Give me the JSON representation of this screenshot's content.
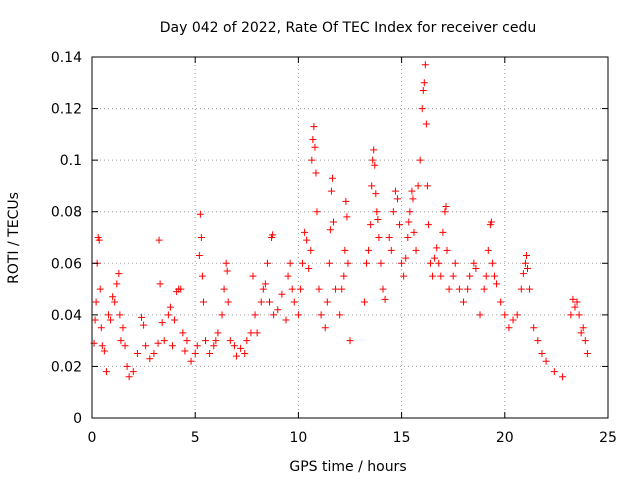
{
  "chart_data": {
    "type": "scatter",
    "title": "Day 042 of 2022, Rate Of TEC Index for receiver cedu",
    "xlabel": "GPS time / hours",
    "ylabel": "ROTI / TECUs",
    "xlim": [
      0,
      25
    ],
    "ylim": [
      0,
      0.14
    ],
    "x_ticks": [
      "0",
      "5",
      "10",
      "15",
      "20",
      "25"
    ],
    "y_ticks": [
      "0",
      "0.02",
      "0.04",
      "0.06",
      "0.08",
      "0.1",
      "0.12",
      "0.14"
    ],
    "grid": true,
    "legend": "none",
    "marker": "+",
    "series": [
      {
        "color": "#ff0000",
        "points": [
          [
            0.1,
            0.029
          ],
          [
            0.15,
            0.038
          ],
          [
            0.2,
            0.045
          ],
          [
            0.25,
            0.06
          ],
          [
            0.3,
            0.07
          ],
          [
            0.35,
            0.069
          ],
          [
            0.4,
            0.05
          ],
          [
            0.45,
            0.035
          ],
          [
            0.5,
            0.028
          ],
          [
            0.6,
            0.026
          ],
          [
            0.7,
            0.018
          ],
          [
            0.8,
            0.04
          ],
          [
            0.9,
            0.038
          ],
          [
            1.0,
            0.047
          ],
          [
            1.1,
            0.045
          ],
          [
            1.2,
            0.052
          ],
          [
            1.3,
            0.056
          ],
          [
            1.35,
            0.04
          ],
          [
            1.4,
            0.03
          ],
          [
            1.5,
            0.035
          ],
          [
            1.6,
            0.028
          ],
          [
            1.7,
            0.02
          ],
          [
            1.8,
            0.016
          ],
          [
            2.0,
            0.018
          ],
          [
            2.2,
            0.025
          ],
          [
            2.4,
            0.039
          ],
          [
            2.5,
            0.036
          ],
          [
            2.6,
            0.028
          ],
          [
            2.8,
            0.023
          ],
          [
            3.0,
            0.025
          ],
          [
            3.2,
            0.029
          ],
          [
            3.25,
            0.069
          ],
          [
            3.3,
            0.052
          ],
          [
            3.4,
            0.037
          ],
          [
            3.5,
            0.03
          ],
          [
            3.7,
            0.04
          ],
          [
            3.8,
            0.043
          ],
          [
            3.9,
            0.028
          ],
          [
            4.0,
            0.038
          ],
          [
            4.1,
            0.049
          ],
          [
            4.2,
            0.05
          ],
          [
            4.3,
            0.05
          ],
          [
            4.4,
            0.033
          ],
          [
            4.5,
            0.026
          ],
          [
            4.6,
            0.03
          ],
          [
            4.8,
            0.022
          ],
          [
            5.0,
            0.025
          ],
          [
            5.1,
            0.028
          ],
          [
            5.2,
            0.063
          ],
          [
            5.25,
            0.079
          ],
          [
            5.3,
            0.07
          ],
          [
            5.35,
            0.055
          ],
          [
            5.4,
            0.045
          ],
          [
            5.5,
            0.03
          ],
          [
            5.7,
            0.025
          ],
          [
            5.9,
            0.028
          ],
          [
            6.0,
            0.03
          ],
          [
            6.1,
            0.033
          ],
          [
            6.3,
            0.04
          ],
          [
            6.4,
            0.05
          ],
          [
            6.5,
            0.06
          ],
          [
            6.55,
            0.057
          ],
          [
            6.6,
            0.045
          ],
          [
            6.7,
            0.03
          ],
          [
            6.9,
            0.028
          ],
          [
            7.0,
            0.024
          ],
          [
            7.2,
            0.027
          ],
          [
            7.4,
            0.025
          ],
          [
            7.5,
            0.03
          ],
          [
            7.7,
            0.033
          ],
          [
            7.8,
            0.055
          ],
          [
            7.9,
            0.04
          ],
          [
            8.0,
            0.033
          ],
          [
            8.2,
            0.045
          ],
          [
            8.3,
            0.05
          ],
          [
            8.4,
            0.052
          ],
          [
            8.5,
            0.06
          ],
          [
            8.6,
            0.045
          ],
          [
            8.7,
            0.07
          ],
          [
            8.75,
            0.071
          ],
          [
            8.8,
            0.04
          ],
          [
            9.0,
            0.042
          ],
          [
            9.2,
            0.048
          ],
          [
            9.4,
            0.038
          ],
          [
            9.5,
            0.055
          ],
          [
            9.6,
            0.06
          ],
          [
            9.7,
            0.05
          ],
          [
            9.8,
            0.045
          ],
          [
            10.0,
            0.04
          ],
          [
            10.1,
            0.05
          ],
          [
            10.2,
            0.06
          ],
          [
            10.3,
            0.072
          ],
          [
            10.4,
            0.069
          ],
          [
            10.5,
            0.058
          ],
          [
            10.6,
            0.065
          ],
          [
            10.65,
            0.1
          ],
          [
            10.7,
            0.108
          ],
          [
            10.75,
            0.113
          ],
          [
            10.8,
            0.105
          ],
          [
            10.85,
            0.095
          ],
          [
            10.9,
            0.08
          ],
          [
            11.0,
            0.05
          ],
          [
            11.1,
            0.04
          ],
          [
            11.3,
            0.035
          ],
          [
            11.4,
            0.045
          ],
          [
            11.5,
            0.06
          ],
          [
            11.55,
            0.073
          ],
          [
            11.6,
            0.088
          ],
          [
            11.65,
            0.093
          ],
          [
            11.7,
            0.076
          ],
          [
            11.8,
            0.05
          ],
          [
            12.0,
            0.04
          ],
          [
            12.1,
            0.05
          ],
          [
            12.2,
            0.055
          ],
          [
            12.25,
            0.065
          ],
          [
            12.3,
            0.084
          ],
          [
            12.35,
            0.078
          ],
          [
            12.4,
            0.06
          ],
          [
            12.5,
            0.03
          ],
          [
            13.2,
            0.045
          ],
          [
            13.3,
            0.06
          ],
          [
            13.4,
            0.065
          ],
          [
            13.5,
            0.075
          ],
          [
            13.55,
            0.09
          ],
          [
            13.6,
            0.1
          ],
          [
            13.65,
            0.104
          ],
          [
            13.7,
            0.098
          ],
          [
            13.75,
            0.087
          ],
          [
            13.8,
            0.08
          ],
          [
            13.85,
            0.077
          ],
          [
            13.9,
            0.07
          ],
          [
            14.0,
            0.06
          ],
          [
            14.1,
            0.05
          ],
          [
            14.2,
            0.046
          ],
          [
            14.4,
            0.07
          ],
          [
            14.5,
            0.065
          ],
          [
            14.6,
            0.08
          ],
          [
            14.7,
            0.088
          ],
          [
            14.8,
            0.085
          ],
          [
            14.9,
            0.075
          ],
          [
            15.0,
            0.06
          ],
          [
            15.1,
            0.055
          ],
          [
            15.2,
            0.062
          ],
          [
            15.3,
            0.07
          ],
          [
            15.35,
            0.076
          ],
          [
            15.4,
            0.08
          ],
          [
            15.5,
            0.088
          ],
          [
            15.55,
            0.085
          ],
          [
            15.6,
            0.072
          ],
          [
            15.7,
            0.065
          ],
          [
            15.8,
            0.09
          ],
          [
            15.9,
            0.1
          ],
          [
            16.0,
            0.12
          ],
          [
            16.05,
            0.127
          ],
          [
            16.1,
            0.13
          ],
          [
            16.15,
            0.137
          ],
          [
            16.2,
            0.114
          ],
          [
            16.25,
            0.09
          ],
          [
            16.3,
            0.075
          ],
          [
            16.4,
            0.06
          ],
          [
            16.5,
            0.055
          ],
          [
            16.6,
            0.062
          ],
          [
            16.7,
            0.066
          ],
          [
            16.8,
            0.06
          ],
          [
            16.9,
            0.055
          ],
          [
            17.0,
            0.072
          ],
          [
            17.1,
            0.08
          ],
          [
            17.15,
            0.082
          ],
          [
            17.2,
            0.065
          ],
          [
            17.3,
            0.05
          ],
          [
            17.5,
            0.055
          ],
          [
            17.6,
            0.06
          ],
          [
            17.8,
            0.05
          ],
          [
            18.0,
            0.045
          ],
          [
            18.2,
            0.05
          ],
          [
            18.3,
            0.055
          ],
          [
            18.5,
            0.06
          ],
          [
            18.6,
            0.058
          ],
          [
            18.8,
            0.04
          ],
          [
            19.0,
            0.05
          ],
          [
            19.1,
            0.055
          ],
          [
            19.2,
            0.065
          ],
          [
            19.3,
            0.075
          ],
          [
            19.35,
            0.076
          ],
          [
            19.4,
            0.06
          ],
          [
            19.5,
            0.055
          ],
          [
            19.6,
            0.052
          ],
          [
            19.8,
            0.045
          ],
          [
            20.0,
            0.04
          ],
          [
            20.2,
            0.035
          ],
          [
            20.4,
            0.038
          ],
          [
            20.6,
            0.04
          ],
          [
            20.8,
            0.05
          ],
          [
            20.9,
            0.056
          ],
          [
            21.0,
            0.06
          ],
          [
            21.05,
            0.063
          ],
          [
            21.1,
            0.058
          ],
          [
            21.2,
            0.05
          ],
          [
            21.4,
            0.035
          ],
          [
            21.6,
            0.03
          ],
          [
            21.8,
            0.025
          ],
          [
            22.0,
            0.022
          ],
          [
            22.4,
            0.018
          ],
          [
            22.8,
            0.016
          ],
          [
            23.2,
            0.04
          ],
          [
            23.3,
            0.046
          ],
          [
            23.4,
            0.043
          ],
          [
            23.5,
            0.045
          ],
          [
            23.6,
            0.04
          ],
          [
            23.7,
            0.033
          ],
          [
            23.8,
            0.035
          ],
          [
            23.9,
            0.03
          ],
          [
            24.0,
            0.025
          ]
        ]
      }
    ]
  }
}
